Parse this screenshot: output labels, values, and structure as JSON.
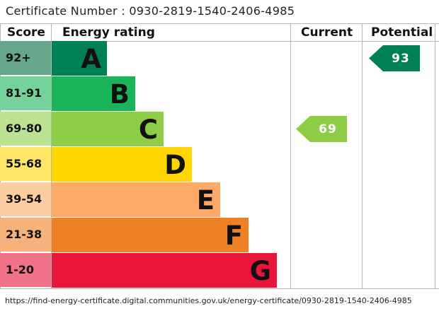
{
  "certificate": {
    "label": "Certificate Number : 0930-2819-1540-2406-4985"
  },
  "headers": {
    "score": "Score",
    "rating": "Energy rating",
    "current": "Current",
    "potential": "Potential"
  },
  "url": "https://find-energy-certificate.digital.communities.gov.uk/energy-certificate/0930-2819-1540-2406-4985",
  "chart_data": {
    "type": "bar",
    "categories": [
      "A",
      "B",
      "C",
      "D",
      "E",
      "F",
      "G"
    ],
    "score_ranges": [
      "92+",
      "81-91",
      "69-80",
      "55-68",
      "39-54",
      "21-38",
      "1-20"
    ],
    "band_colors": [
      "#008054",
      "#19b459",
      "#8dce46",
      "#ffd500",
      "#fcaa65",
      "#ef8023",
      "#e9153b"
    ],
    "score_cell_colors": [
      "#66a68a",
      "#75d29b",
      "#bbe290",
      "#ffe666",
      "#fdcc9f",
      "#f5b37b",
      "#f27389"
    ],
    "letter_colors": [
      "#111111",
      "#111111",
      "#111111",
      "#111111",
      "#111111",
      "#111111",
      "#111111"
    ],
    "current": {
      "value": 69,
      "band": "C",
      "color": "#8dce46"
    },
    "potential": {
      "value": 93,
      "band": "A",
      "color": "#008054"
    }
  }
}
